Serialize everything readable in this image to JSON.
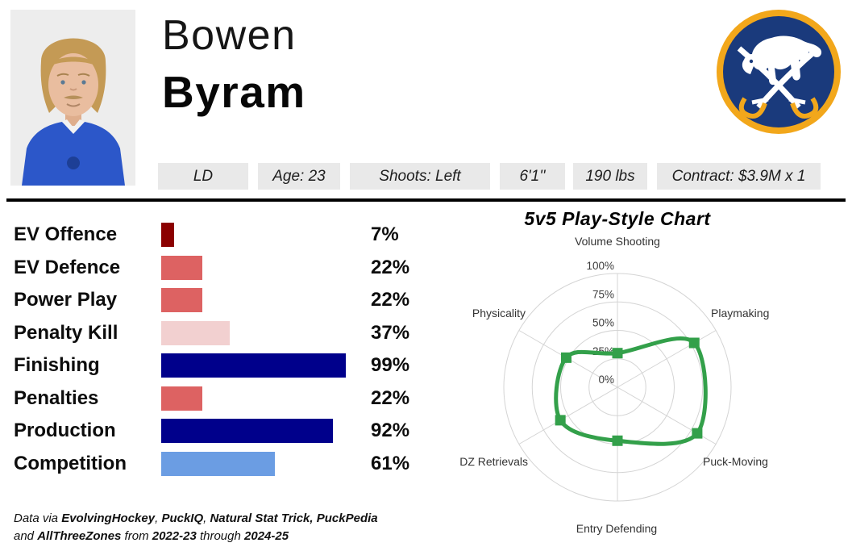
{
  "player": {
    "first_name": "Bowen",
    "last_name": "Byram"
  },
  "team": {
    "name": "Buffalo Sabres",
    "logo_colors": {
      "navy": "#1a3a7c",
      "gold": "#f2a71b",
      "white": "#ffffff"
    }
  },
  "badges": [
    "LD",
    "Age: 23",
    "Shoots: Left",
    "6'1''",
    "190 lbs",
    "Contract: $3.9M x 1"
  ],
  "chart_data": [
    {
      "type": "bar",
      "title": "",
      "categories": [
        "EV Offence",
        "EV Defence",
        "Power Play",
        "Penalty Kill",
        "Finishing",
        "Penalties",
        "Production",
        "Competition"
      ],
      "values": [
        7,
        22,
        22,
        37,
        99,
        22,
        92,
        61
      ],
      "value_labels": [
        "7%",
        "22%",
        "22%",
        "37%",
        "99%",
        "22%",
        "92%",
        "61%"
      ],
      "bar_colors": [
        "#8b0000",
        "#dd6262",
        "#dd6262",
        "#f2d0d0",
        "#00008b",
        "#dd6262",
        "#00008b",
        "#6b9de3"
      ],
      "xlim": [
        0,
        100
      ],
      "grid": false,
      "legend": "none"
    },
    {
      "type": "radar",
      "title": "5v5 Play-Style Chart",
      "categories": [
        "Volume Shooting",
        "Playmaking",
        "Puck-Moving",
        "Entry Defending",
        "DZ Retrievals",
        "Physicality"
      ],
      "values": [
        30,
        78,
        81,
        47,
        58,
        52
      ],
      "rlim": [
        0,
        100
      ],
      "tick_labels": [
        "0%",
        "25%",
        "50%",
        "75%",
        "100%"
      ],
      "line_color": "#33a04a",
      "grid_color": "#d4d4d4",
      "grid": true,
      "legend": "none"
    }
  ],
  "footer": {
    "lines": [
      [
        {
          "text": "Data via ",
          "bold": false
        },
        {
          "text": "EvolvingHockey",
          "bold": true
        },
        {
          "text": ", ",
          "bold": false
        },
        {
          "text": "PuckIQ",
          "bold": true
        },
        {
          "text": ", ",
          "bold": false
        },
        {
          "text": "Natural Stat Trick,",
          "bold": true
        },
        {
          "text": " ",
          "bold": false
        },
        {
          "text": "PuckPedia",
          "bold": true
        }
      ],
      [
        {
          "text": "and ",
          "bold": false
        },
        {
          "text": "AllThreeZones",
          "bold": true
        },
        {
          "text": " from ",
          "bold": false
        },
        {
          "text": "2022-23",
          "bold": true
        },
        {
          "text": " through ",
          "bold": false
        },
        {
          "text": "2024-25",
          "bold": true
        }
      ]
    ]
  }
}
